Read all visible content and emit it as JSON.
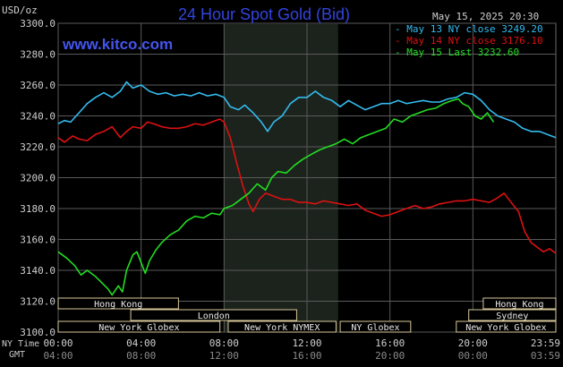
{
  "chart_data": {
    "type": "line",
    "title": "24 Hour Spot Gold (Bid)",
    "site": "www.kitco.com",
    "timestamp": "May 15, 2025 20:30",
    "y_unit_label": "USD/oz",
    "ylim": [
      3100,
      3300
    ],
    "yticks": [
      "3100.0",
      "3120.0",
      "3140.0",
      "3160.0",
      "3180.0",
      "3200.0",
      "3220.0",
      "3240.0",
      "3260.0",
      "3280.0",
      "3300.0"
    ],
    "x_hours": [
      0,
      24
    ],
    "xaxis_rows": [
      {
        "label": "NY Time",
        "ticks": [
          "00:00",
          "04:00",
          "08:00",
          "12:00",
          "16:00",
          "20:00",
          "23:59"
        ]
      },
      {
        "label": "GMT",
        "ticks": [
          "04:00",
          "08:00",
          "12:00",
          "16:00",
          "20:00",
          "00:00",
          "03:59"
        ]
      }
    ],
    "grid": true,
    "legend_position": "top-right",
    "highlight_hours": [
      8,
      13.5
    ],
    "series": [
      {
        "name": "May 13 NY close 3249.20",
        "color": "#33bbee",
        "points": [
          [
            0,
            3235
          ],
          [
            0.3,
            3237
          ],
          [
            0.6,
            3236
          ],
          [
            1,
            3242
          ],
          [
            1.4,
            3248
          ],
          [
            1.8,
            3252
          ],
          [
            2.2,
            3255
          ],
          [
            2.6,
            3252
          ],
          [
            3,
            3256
          ],
          [
            3.3,
            3262
          ],
          [
            3.6,
            3258
          ],
          [
            4,
            3260
          ],
          [
            4.4,
            3256
          ],
          [
            4.8,
            3254
          ],
          [
            5.2,
            3255
          ],
          [
            5.6,
            3253
          ],
          [
            6,
            3254
          ],
          [
            6.4,
            3253
          ],
          [
            6.8,
            3255
          ],
          [
            7.2,
            3253
          ],
          [
            7.6,
            3254
          ],
          [
            8,
            3252
          ],
          [
            8.3,
            3246
          ],
          [
            8.7,
            3244
          ],
          [
            9,
            3247
          ],
          [
            9.4,
            3242
          ],
          [
            9.8,
            3236
          ],
          [
            10.1,
            3230
          ],
          [
            10.4,
            3236
          ],
          [
            10.8,
            3240
          ],
          [
            11.2,
            3248
          ],
          [
            11.6,
            3252
          ],
          [
            12,
            3252
          ],
          [
            12.4,
            3256
          ],
          [
            12.8,
            3252
          ],
          [
            13.2,
            3250
          ],
          [
            13.6,
            3246
          ],
          [
            14,
            3250
          ],
          [
            14.4,
            3247
          ],
          [
            14.8,
            3244
          ],
          [
            15.2,
            3246
          ],
          [
            15.6,
            3248
          ],
          [
            16,
            3248
          ],
          [
            16.4,
            3250
          ],
          [
            16.8,
            3248
          ],
          [
            17.2,
            3249
          ],
          [
            17.6,
            3250
          ],
          [
            18,
            3249
          ],
          [
            18.4,
            3249
          ],
          [
            18.8,
            3251
          ],
          [
            19.2,
            3252
          ],
          [
            19.6,
            3255
          ],
          [
            20,
            3254
          ],
          [
            20.4,
            3250
          ],
          [
            20.8,
            3244
          ],
          [
            21.2,
            3240
          ],
          [
            21.6,
            3238
          ],
          [
            22,
            3236
          ],
          [
            22.4,
            3232
          ],
          [
            22.8,
            3230
          ],
          [
            23.2,
            3230
          ],
          [
            23.6,
            3228
          ],
          [
            24,
            3226
          ]
        ]
      },
      {
        "name": "May 14 NY close 3176.10",
        "color": "#dd1111",
        "points": [
          [
            0,
            3226
          ],
          [
            0.3,
            3223
          ],
          [
            0.7,
            3227
          ],
          [
            1,
            3225
          ],
          [
            1.4,
            3224
          ],
          [
            1.8,
            3228
          ],
          [
            2.2,
            3230
          ],
          [
            2.6,
            3233
          ],
          [
            3,
            3226
          ],
          [
            3.3,
            3230
          ],
          [
            3.6,
            3233
          ],
          [
            4,
            3232
          ],
          [
            4.3,
            3236
          ],
          [
            4.6,
            3235
          ],
          [
            5,
            3233
          ],
          [
            5.4,
            3232
          ],
          [
            5.8,
            3232
          ],
          [
            6.2,
            3233
          ],
          [
            6.6,
            3235
          ],
          [
            7,
            3234
          ],
          [
            7.4,
            3236
          ],
          [
            7.8,
            3238
          ],
          [
            8,
            3236
          ],
          [
            8.3,
            3226
          ],
          [
            8.6,
            3210
          ],
          [
            8.9,
            3195
          ],
          [
            9.2,
            3183
          ],
          [
            9.4,
            3178
          ],
          [
            9.7,
            3186
          ],
          [
            10,
            3190
          ],
          [
            10.4,
            3188
          ],
          [
            10.8,
            3186
          ],
          [
            11.2,
            3186
          ],
          [
            11.6,
            3184
          ],
          [
            12,
            3184
          ],
          [
            12.4,
            3183
          ],
          [
            12.8,
            3185
          ],
          [
            13.2,
            3184
          ],
          [
            13.6,
            3183
          ],
          [
            14,
            3182
          ],
          [
            14.4,
            3183
          ],
          [
            14.8,
            3179
          ],
          [
            15.2,
            3177
          ],
          [
            15.6,
            3175
          ],
          [
            16,
            3176
          ],
          [
            16.4,
            3178
          ],
          [
            16.8,
            3180
          ],
          [
            17.2,
            3182
          ],
          [
            17.6,
            3180
          ],
          [
            18,
            3181
          ],
          [
            18.4,
            3183
          ],
          [
            18.8,
            3184
          ],
          [
            19.2,
            3185
          ],
          [
            19.6,
            3185
          ],
          [
            20,
            3186
          ],
          [
            20.4,
            3185
          ],
          [
            20.8,
            3184
          ],
          [
            21.2,
            3187
          ],
          [
            21.5,
            3190
          ],
          [
            21.9,
            3183
          ],
          [
            22.2,
            3178
          ],
          [
            22.5,
            3165
          ],
          [
            22.8,
            3158
          ],
          [
            23.1,
            3155
          ],
          [
            23.4,
            3152
          ],
          [
            23.7,
            3154
          ],
          [
            24,
            3151
          ]
        ]
      },
      {
        "name": "May 15 Last 3232.60",
        "color": "#22dd22",
        "points": [
          [
            0,
            3152
          ],
          [
            0.4,
            3148
          ],
          [
            0.8,
            3143
          ],
          [
            1.1,
            3137
          ],
          [
            1.4,
            3140
          ],
          [
            1.8,
            3136
          ],
          [
            2.1,
            3132
          ],
          [
            2.4,
            3128
          ],
          [
            2.6,
            3124
          ],
          [
            2.9,
            3130
          ],
          [
            3.1,
            3126
          ],
          [
            3.3,
            3140
          ],
          [
            3.6,
            3150
          ],
          [
            3.8,
            3152
          ],
          [
            4,
            3145
          ],
          [
            4.2,
            3138
          ],
          [
            4.4,
            3146
          ],
          [
            4.7,
            3153
          ],
          [
            5,
            3158
          ],
          [
            5.4,
            3163
          ],
          [
            5.8,
            3166
          ],
          [
            6.2,
            3172
          ],
          [
            6.6,
            3175
          ],
          [
            7,
            3174
          ],
          [
            7.4,
            3177
          ],
          [
            7.8,
            3176
          ],
          [
            8,
            3180
          ],
          [
            8.4,
            3182
          ],
          [
            8.8,
            3186
          ],
          [
            9.2,
            3190
          ],
          [
            9.6,
            3196
          ],
          [
            10,
            3192
          ],
          [
            10.3,
            3200
          ],
          [
            10.6,
            3204
          ],
          [
            11,
            3203
          ],
          [
            11.4,
            3208
          ],
          [
            11.8,
            3212
          ],
          [
            12.2,
            3215
          ],
          [
            12.6,
            3218
          ],
          [
            13,
            3220
          ],
          [
            13.4,
            3222
          ],
          [
            13.8,
            3225
          ],
          [
            14.2,
            3222
          ],
          [
            14.6,
            3226
          ],
          [
            15,
            3228
          ],
          [
            15.4,
            3230
          ],
          [
            15.8,
            3232
          ],
          [
            16.2,
            3238
          ],
          [
            16.6,
            3236
          ],
          [
            17,
            3240
          ],
          [
            17.4,
            3242
          ],
          [
            17.8,
            3244
          ],
          [
            18.2,
            3245
          ],
          [
            18.6,
            3248
          ],
          [
            19,
            3250
          ],
          [
            19.3,
            3251
          ],
          [
            19.5,
            3248
          ],
          [
            19.8,
            3246
          ],
          [
            20.1,
            3240
          ],
          [
            20.4,
            3238
          ],
          [
            20.7,
            3242
          ],
          [
            21,
            3236
          ]
        ]
      }
    ],
    "sessions": [
      {
        "label": "Hong Kong",
        "start": 0,
        "end": 5.8,
        "row": 0
      },
      {
        "label": "London",
        "start": 3.5,
        "end": 11.5,
        "row": 1
      },
      {
        "label": "New York Globex",
        "start": 0,
        "end": 7.8,
        "row": 2
      },
      {
        "label": "New York NYMEX",
        "start": 8.2,
        "end": 13.4,
        "row": 2
      },
      {
        "label": "NY Globex",
        "start": 13.6,
        "end": 17,
        "row": 2
      },
      {
        "label": "Hong Kong",
        "start": 20.5,
        "end": 24,
        "row": 0
      },
      {
        "label": "Sydney",
        "start": 19.8,
        "end": 24,
        "row": 1
      },
      {
        "label": "New York Globex",
        "start": 19.2,
        "end": 24,
        "row": 2
      }
    ]
  }
}
